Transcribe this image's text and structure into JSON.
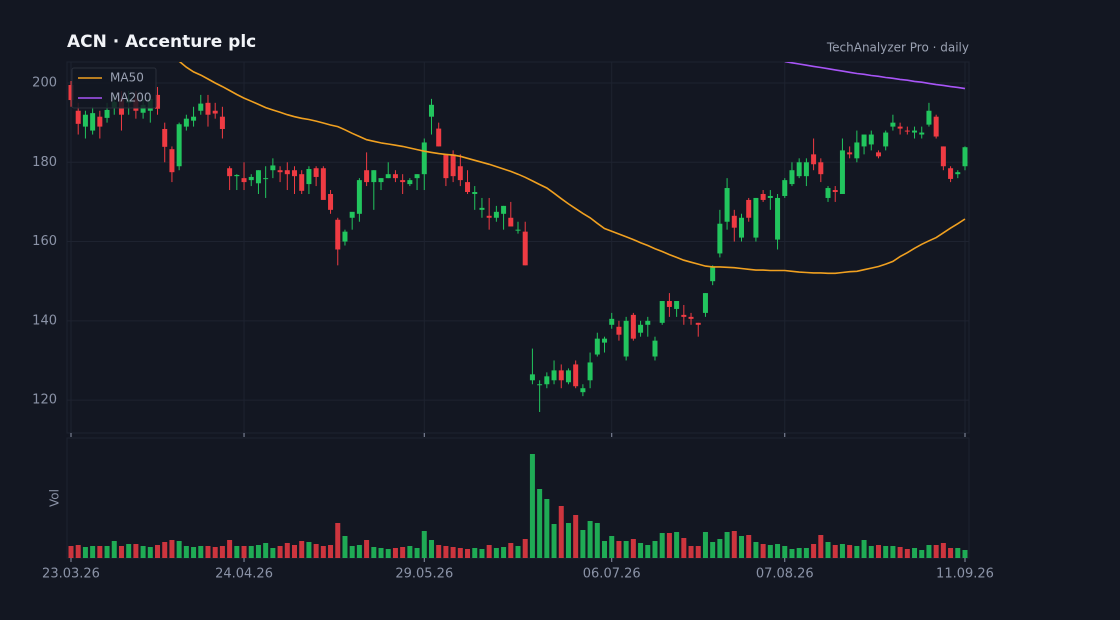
{
  "chart_data": {
    "type": "candlestick",
    "title": "ACN  ·  Accenture plc",
    "subtitle": "TechAnalyzer Pro · daily",
    "volume_label": "Vol",
    "up_color": "#22c55e",
    "down_color": "#ef3b43",
    "grid": true,
    "legend": "upper left",
    "x": [
      "2026-03-23",
      "2026-03-24",
      "2026-03-25",
      "2026-03-26",
      "2026-03-27",
      "2026-03-30",
      "2026-03-31",
      "2026-04-01",
      "2026-04-02",
      "2026-04-03",
      "2026-04-06",
      "2026-04-07",
      "2026-04-08",
      "2026-04-09",
      "2026-04-10",
      "2026-04-13",
      "2026-04-14",
      "2026-04-15",
      "2026-04-16",
      "2026-04-17",
      "2026-04-20",
      "2026-04-21",
      "2026-04-22",
      "2026-04-23",
      "2026-04-24",
      "2026-04-27",
      "2026-04-28",
      "2026-04-29",
      "2026-04-30",
      "2026-05-01",
      "2026-05-04",
      "2026-05-05",
      "2026-05-06",
      "2026-05-07",
      "2026-05-08",
      "2026-05-11",
      "2026-05-12",
      "2026-05-13",
      "2026-05-14",
      "2026-05-15",
      "2026-05-18",
      "2026-05-19",
      "2026-05-20",
      "2026-05-21",
      "2026-05-22",
      "2026-05-25",
      "2026-05-26",
      "2026-05-27",
      "2026-05-28",
      "2026-05-29",
      "2026-06-01",
      "2026-06-02",
      "2026-06-03",
      "2026-06-04",
      "2026-06-05",
      "2026-06-08",
      "2026-06-09",
      "2026-06-10",
      "2026-06-11",
      "2026-06-12",
      "2026-06-15",
      "2026-06-16",
      "2026-06-17",
      "2026-06-18",
      "2026-06-19",
      "2026-06-22",
      "2026-06-23",
      "2026-06-24",
      "2026-06-25",
      "2026-06-26",
      "2026-06-29",
      "2026-06-30",
      "2026-07-01",
      "2026-07-02",
      "2026-07-03",
      "2026-07-06",
      "2026-07-07",
      "2026-07-08",
      "2026-07-09",
      "2026-07-10",
      "2026-07-13",
      "2026-07-14",
      "2026-07-15",
      "2026-07-16",
      "2026-07-17",
      "2026-07-20",
      "2026-07-21",
      "2026-07-22",
      "2026-07-23",
      "2026-07-24",
      "2026-07-27",
      "2026-07-28",
      "2026-07-29",
      "2026-07-30",
      "2026-07-31",
      "2026-08-03",
      "2026-08-04",
      "2026-08-05",
      "2026-08-06",
      "2026-08-07",
      "2026-08-10",
      "2026-08-11",
      "2026-08-12",
      "2026-08-13",
      "2026-08-14",
      "2026-08-17",
      "2026-08-18",
      "2026-08-19",
      "2026-08-20",
      "2026-08-21",
      "2026-08-24",
      "2026-08-25",
      "2026-08-26",
      "2026-08-27",
      "2026-08-28",
      "2026-08-31",
      "2026-09-01",
      "2026-09-02",
      "2026-09-03",
      "2026-09-04",
      "2026-09-07",
      "2026-09-08",
      "2026-09-09",
      "2026-09-10",
      "2026-09-11"
    ],
    "xticks": [
      {
        "value": "2026-03-23",
        "label": "23.03.26"
      },
      {
        "value": "2026-04-24",
        "label": "24.04.26"
      },
      {
        "value": "2026-05-29",
        "label": "29.05.26"
      },
      {
        "value": "2026-07-06",
        "label": "06.07.26"
      },
      {
        "value": "2026-08-07",
        "label": "07.08.26"
      },
      {
        "value": "2026-09-11",
        "label": "11.09.26"
      }
    ],
    "open": [
      199.5,
      193,
      189,
      188,
      191.5,
      191.2,
      193.7,
      196,
      195,
      196,
      192.5,
      193,
      197,
      188.4,
      183.3,
      179,
      189,
      190.5,
      193,
      195,
      193,
      191.5,
      178.5,
      176.5,
      176,
      175.5,
      174.7,
      176,
      178,
      178,
      178,
      178,
      177,
      174.5,
      178.5,
      178.5,
      172,
      165.5,
      160,
      166,
      167,
      178,
      175,
      175,
      176,
      177,
      175.5,
      174.5,
      176,
      177,
      191.5,
      188.5,
      182,
      182,
      179,
      175,
      172,
      168,
      166.5,
      166,
      167,
      166,
      163,
      162.5,
      125,
      124,
      124,
      125,
      127.5,
      124.5,
      129,
      122,
      125,
      131.5,
      134.5,
      139,
      138.5,
      131,
      141.5,
      137,
      139,
      131,
      139.5,
      145,
      143,
      141.5,
      141,
      139.5,
      142,
      150,
      157,
      165,
      166.5,
      161,
      170.5,
      161,
      172,
      171,
      160.5,
      171.5,
      174.5,
      176.5,
      176.5,
      182,
      180,
      171,
      173,
      172,
      182.5,
      181,
      184,
      184.5,
      182.5,
      184,
      189,
      189,
      188,
      187.5,
      187,
      189.5,
      191.5,
      184,
      178.5,
      177,
      179
    ],
    "high": [
      200.5,
      195,
      193,
      194,
      193,
      195,
      197,
      198,
      198,
      198,
      196,
      197,
      199,
      190,
      184,
      190,
      192,
      194,
      197,
      197,
      195,
      194,
      179,
      177,
      180,
      177,
      178,
      179,
      181,
      179,
      180,
      179,
      178,
      179,
      179,
      179,
      173,
      166,
      163,
      167,
      176,
      182.5,
      178,
      176,
      180,
      178,
      177,
      176,
      177,
      186,
      196,
      190,
      182,
      183,
      182,
      178,
      174,
      171,
      171,
      169,
      169,
      170,
      165,
      165,
      133,
      125,
      127,
      130,
      129,
      128,
      130,
      124,
      132,
      137,
      136,
      142,
      140,
      141,
      142,
      140,
      141,
      136,
      145,
      147,
      145,
      144,
      142,
      139.5,
      147,
      154,
      168,
      176,
      168,
      167,
      171,
      171,
      173,
      173,
      172,
      176,
      180,
      181,
      181,
      186,
      181,
      174,
      174,
      186,
      184,
      188,
      187,
      188,
      183,
      188,
      192,
      190,
      189,
      189,
      189,
      195,
      192,
      184,
      179,
      178,
      184
    ],
    "low": [
      194,
      187,
      186,
      187,
      186,
      190,
      192,
      188,
      192,
      191,
      191,
      190,
      192,
      180,
      175,
      178,
      188,
      189,
      192,
      189,
      191,
      186,
      173,
      173,
      173,
      174,
      172,
      171,
      176,
      175,
      173,
      172,
      172,
      172,
      174,
      171,
      167,
      154,
      159,
      163,
      165,
      174,
      168,
      173,
      176,
      175,
      172,
      174,
      173,
      173,
      187,
      184,
      174,
      175,
      174,
      172,
      168,
      166,
      163,
      165,
      163,
      164,
      162,
      154,
      124,
      117,
      123,
      124,
      123,
      124,
      123,
      121,
      123,
      131,
      132,
      138,
      135,
      130,
      135,
      136,
      136,
      130,
      139,
      141,
      141,
      139,
      139,
      136,
      141,
      149,
      156,
      163,
      160,
      160,
      165,
      160,
      170,
      168,
      158,
      171,
      174,
      176,
      174,
      178,
      175,
      170,
      170,
      172,
      181,
      180,
      182,
      183,
      181,
      183,
      188,
      187,
      187,
      186,
      186,
      189,
      186,
      178,
      175,
      176,
      178
    ],
    "close": [
      195.7,
      189.7,
      192,
      192.4,
      189,
      193.2,
      195.2,
      192,
      196,
      193,
      194.5,
      196,
      193.5,
      183.9,
      177.5,
      189.6,
      191,
      191.5,
      194.8,
      192,
      192.3,
      188.4,
      176.5,
      176.8,
      175,
      176.3,
      178,
      176,
      179.2,
      177.5,
      177,
      176.5,
      172.8,
      178.3,
      176.3,
      170.5,
      168,
      158,
      162.5,
      167.5,
      175.5,
      175,
      178,
      176,
      177,
      176,
      175,
      175.5,
      177,
      185,
      194.5,
      184,
      176,
      176.5,
      175.5,
      172.5,
      172.5,
      168.5,
      166,
      167.5,
      169,
      163.8,
      163,
      154,
      126.5,
      124,
      126,
      127.5,
      125,
      127.5,
      123.5,
      123,
      129.5,
      135.5,
      135.5,
      140.5,
      136.5,
      140,
      135.5,
      139,
      140,
      135,
      145,
      143.5,
      145,
      141,
      140.5,
      139,
      147,
      153.5,
      164.5,
      173.5,
      163.5,
      166,
      166,
      171,
      170.5,
      171.5,
      171,
      175.5,
      178,
      180,
      180,
      179.5,
      177,
      173.5,
      172.5,
      183,
      182,
      185,
      187,
      187,
      181.5,
      187.5,
      190,
      188.5,
      187.8,
      188,
      187.5,
      193,
      186.5,
      179,
      175.8,
      177.5,
      183.8
    ],
    "volume": [
      1.2,
      1.3,
      1.1,
      1.2,
      1.2,
      1.2,
      1.7,
      1.2,
      1.4,
      1.4,
      1.2,
      1.1,
      1.3,
      1.6,
      1.8,
      1.7,
      1.2,
      1.1,
      1.2,
      1.2,
      1.1,
      1.2,
      1.8,
      1.2,
      1.2,
      1.2,
      1.3,
      1.5,
      1.0,
      1.2,
      1.5,
      1.3,
      1.7,
      1.6,
      1.4,
      1.2,
      1.3,
      3.5,
      2.2,
      1.2,
      1.3,
      1.8,
      1.1,
      1.0,
      0.9,
      1.0,
      1.1,
      1.2,
      1.0,
      2.7,
      1.8,
      1.3,
      1.2,
      1.1,
      1.0,
      0.9,
      1.0,
      0.9,
      1.3,
      1.0,
      1.1,
      1.5,
      1.2,
      1.9,
      10.4,
      6.9,
      5.9,
      3.4,
      5.2,
      3.5,
      4.3,
      2.8,
      3.7,
      3.5,
      1.7,
      2.2,
      1.7,
      1.7,
      1.9,
      1.5,
      1.3,
      1.7,
      2.5,
      2.5,
      2.6,
      2.0,
      1.2,
      1.2,
      2.6,
      1.6,
      1.9,
      2.6,
      2.7,
      2.2,
      2.3,
      1.6,
      1.4,
      1.3,
      1.4,
      1.2,
      0.9,
      1.0,
      1.0,
      1.4,
      2.3,
      1.6,
      1.3,
      1.4,
      1.3,
      1.2,
      1.8,
      1.2,
      1.3,
      1.2,
      1.2,
      1.1,
      0.9,
      1.0,
      0.8,
      1.3,
      1.3,
      1.5,
      1.0,
      1.0,
      0.8
    ],
    "ylim": [
      111.7,
      205.3
    ],
    "yticks": [
      120,
      140,
      160,
      180,
      200
    ],
    "volume_ylim": [
      0,
      12
    ],
    "series": [
      {
        "name": "MA50",
        "color": "#f0a020",
        "values": [
          null,
          null,
          null,
          null,
          null,
          null,
          null,
          null,
          null,
          null,
          null,
          null,
          null,
          null,
          null,
          205.5,
          204,
          202.8,
          202,
          201,
          200,
          199.1,
          198.1,
          197.1,
          196.2,
          195.4,
          194.6,
          193.8,
          193.2,
          192.6,
          192,
          191.5,
          191.1,
          190.8,
          190.4,
          189.9,
          189.4,
          189,
          188.2,
          187.3,
          186.5,
          185.7,
          185.3,
          184.9,
          184.6,
          184.3,
          184,
          183.6,
          183.2,
          182.8,
          182.5,
          182.2,
          182,
          181.8,
          181.5,
          181,
          180.5,
          180,
          179.5,
          178.9,
          178.3,
          177.7,
          177,
          176.2,
          175.3,
          174.4,
          173.5,
          172.2,
          170.8,
          169.5,
          168.3,
          167.1,
          166,
          164.6,
          163.3,
          162.6,
          161.9,
          161.2,
          160.5,
          159.7,
          159,
          158.2,
          157.5,
          156.7,
          156,
          155.3,
          154.8,
          154.3,
          153.8,
          153.6,
          153.6,
          153.5,
          153.4,
          153.2,
          153,
          152.8,
          152.8,
          152.7,
          152.7,
          152.7,
          152.5,
          152.3,
          152.2,
          152.1,
          152.1,
          152,
          152,
          152.2,
          152.4,
          152.5,
          152.9,
          153.3,
          153.7,
          154.3,
          155,
          156.2,
          157.2,
          158.3,
          159.3,
          160.2,
          161,
          162.2,
          163.4,
          164.5,
          165.7
        ]
      },
      {
        "name": "MA200",
        "color": "#a855f7",
        "values": [
          null,
          null,
          null,
          null,
          null,
          null,
          null,
          null,
          null,
          null,
          null,
          null,
          null,
          null,
          null,
          null,
          null,
          null,
          null,
          null,
          null,
          null,
          null,
          null,
          null,
          null,
          null,
          null,
          null,
          null,
          null,
          null,
          null,
          null,
          null,
          null,
          null,
          null,
          null,
          null,
          null,
          null,
          null,
          null,
          null,
          null,
          null,
          null,
          null,
          null,
          null,
          null,
          null,
          null,
          null,
          null,
          null,
          null,
          null,
          null,
          null,
          null,
          null,
          null,
          null,
          null,
          null,
          null,
          null,
          null,
          null,
          null,
          null,
          null,
          null,
          null,
          null,
          null,
          null,
          null,
          null,
          null,
          null,
          null,
          null,
          null,
          null,
          null,
          null,
          null,
          null,
          null,
          null,
          null,
          null,
          null,
          null,
          null,
          null,
          205.4,
          205.1,
          204.8,
          204.5,
          204.2,
          203.9,
          203.6,
          203.3,
          203.0,
          202.7,
          202.4,
          202.2,
          201.9,
          201.7,
          201.4,
          201.2,
          200.9,
          200.7,
          200.4,
          200.2,
          199.9,
          199.6,
          199.4,
          199.1,
          198.9,
          198.6
        ]
      }
    ]
  }
}
